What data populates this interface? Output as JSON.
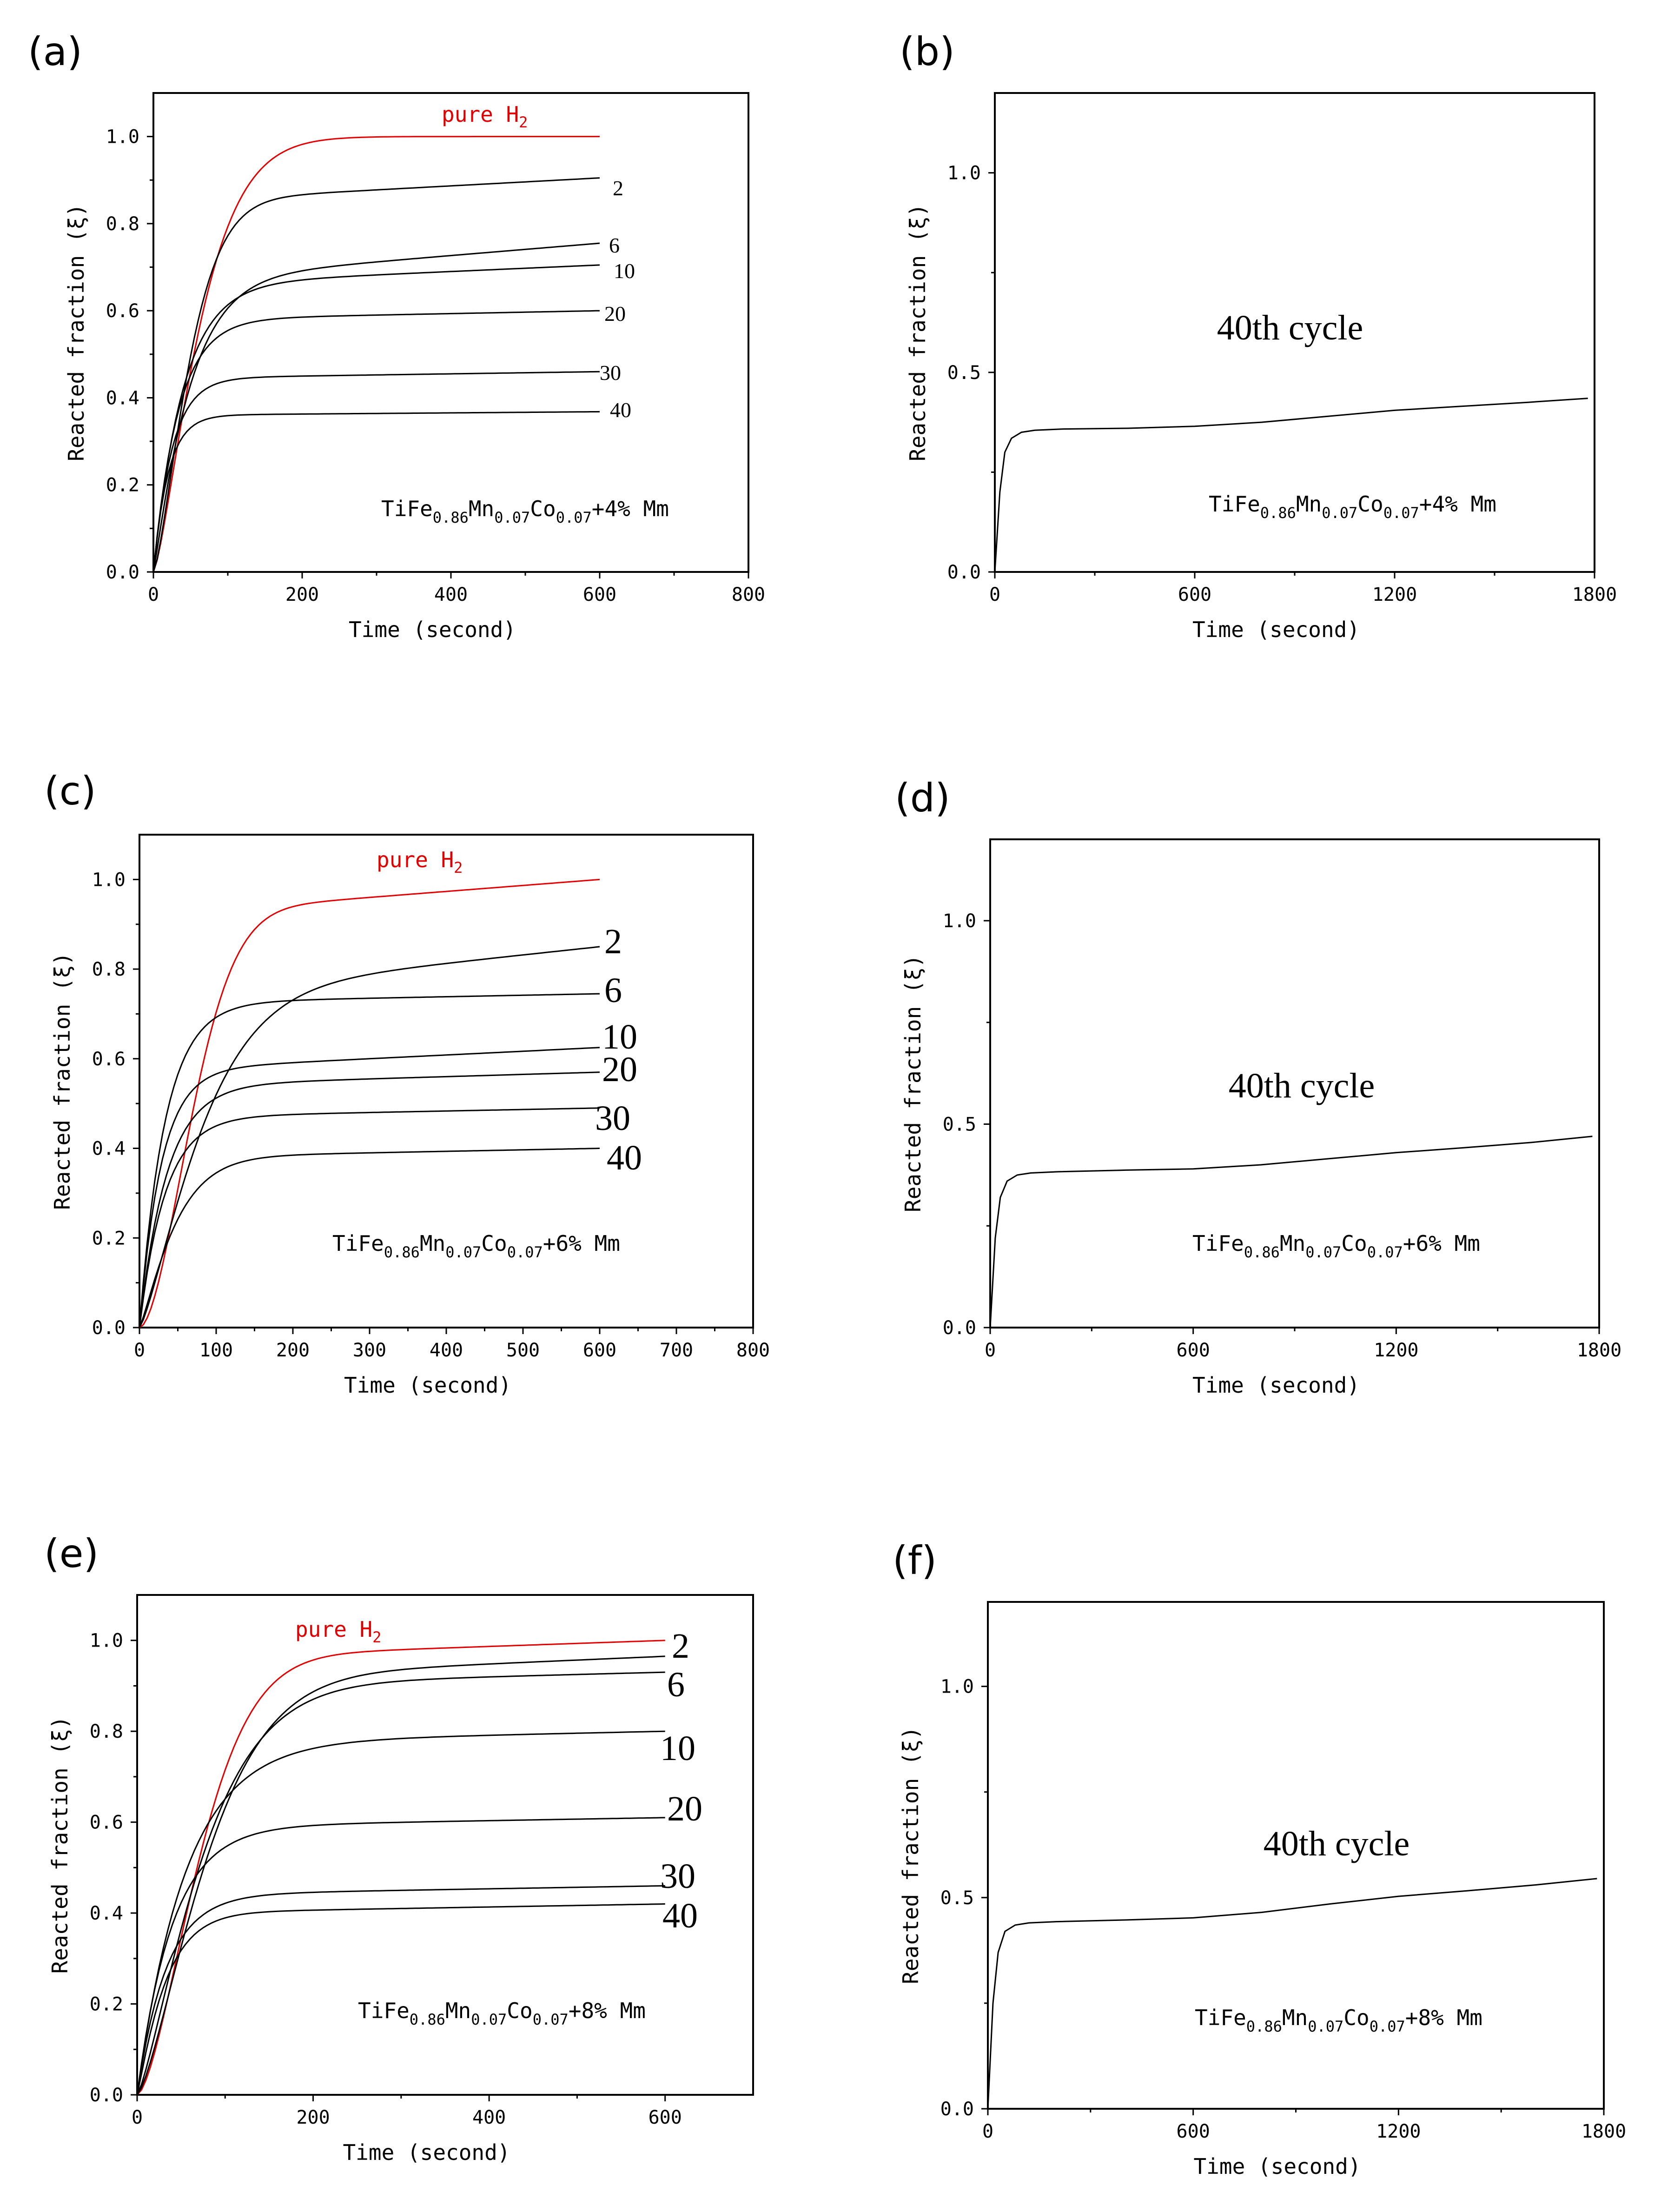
{
  "chart_data": [
    {
      "panel": "(a)",
      "type": "line",
      "xlabel": "Time (second)",
      "ylabel": "Reacted fraction (ξ)",
      "xlim": [
        0,
        800
      ],
      "ylim": [
        0,
        1.1
      ],
      "xticks": [
        0,
        200,
        400,
        600,
        800
      ],
      "yticks": [
        0.0,
        0.2,
        0.4,
        0.6,
        0.8,
        1.0
      ],
      "annotation": {
        "base": "TiFe",
        "sub1": "0.86",
        "mid": "Mn",
        "sub2": "0.07",
        "mid2": "Co",
        "sub3": "0.07",
        "tail": "+4% Mm"
      },
      "series": [
        {
          "name": "pure H2",
          "label": "pure H",
          "label_sub": "2",
          "color": "#e00000",
          "final": 1.0,
          "k": 0.014,
          "n": 1.35,
          "tail": 0.0
        },
        {
          "name": "2",
          "label": "2",
          "color": "#000000",
          "final": 0.85,
          "k": 0.018,
          "n": 1.4,
          "tail": 0.055
        },
        {
          "name": "6",
          "label": "6",
          "color": "#000000",
          "final": 0.67,
          "k": 0.02,
          "n": 1.1,
          "tail": 0.085
        },
        {
          "name": "10",
          "label": "10",
          "color": "#000000",
          "final": 0.66,
          "k": 0.025,
          "n": 1.0,
          "tail": 0.045
        },
        {
          "name": "20",
          "label": "20",
          "color": "#000000",
          "final": 0.58,
          "k": 0.03,
          "n": 1.0,
          "tail": 0.02
        },
        {
          "name": "30",
          "label": "30",
          "color": "#000000",
          "final": 0.445,
          "k": 0.04,
          "n": 1.0,
          "tail": 0.015
        },
        {
          "name": "40",
          "label": "40",
          "color": "#000000",
          "final": 0.36,
          "k": 0.05,
          "n": 1.0,
          "tail": 0.008
        }
      ]
    },
    {
      "panel": "(b)",
      "type": "line",
      "xlabel": "Time (second)",
      "ylabel": "Reacted fraction (ξ)",
      "xlim": [
        0,
        1800
      ],
      "ylim": [
        0,
        1.2
      ],
      "xticks": [
        0,
        600,
        1200,
        1800
      ],
      "yticks": [
        0.0,
        0.5,
        1.0
      ],
      "title": "40th cycle",
      "annotation": {
        "base": "TiFe",
        "sub1": "0.86",
        "mid": "Mn",
        "sub2": "0.07",
        "mid2": "Co",
        "sub3": "0.07",
        "tail": "+4% Mm"
      },
      "series": [
        {
          "name": "40th cycle",
          "color": "#000000",
          "points": [
            [
              0,
              0
            ],
            [
              15,
              0.2
            ],
            [
              30,
              0.3
            ],
            [
              50,
              0.335
            ],
            [
              80,
              0.35
            ],
            [
              120,
              0.355
            ],
            [
              200,
              0.358
            ],
            [
              400,
              0.36
            ],
            [
              600,
              0.365
            ],
            [
              800,
              0.375
            ],
            [
              1000,
              0.39
            ],
            [
              1200,
              0.405
            ],
            [
              1400,
              0.415
            ],
            [
              1600,
              0.425
            ],
            [
              1780,
              0.435
            ]
          ]
        }
      ]
    },
    {
      "panel": "(c)",
      "type": "line",
      "xlabel": "Time (second)",
      "ylabel": "Reacted fraction (ξ)",
      "xlim": [
        0,
        800
      ],
      "ylim": [
        0,
        1.1
      ],
      "xticks": [
        0,
        100,
        200,
        300,
        400,
        500,
        600,
        700,
        800
      ],
      "yticks": [
        0.0,
        0.2,
        0.4,
        0.6,
        0.8,
        1.0
      ],
      "annotation": {
        "base": "TiFe",
        "sub1": "0.86",
        "mid": "Mn",
        "sub2": "0.07",
        "mid2": "Co",
        "sub3": "0.07",
        "tail": "+6% Mm"
      },
      "series": [
        {
          "name": "pure H2",
          "label": "pure H",
          "label_sub": "2",
          "color": "#e00000",
          "final": 0.92,
          "k": 0.012,
          "n": 1.8,
          "tail": 0.08
        },
        {
          "name": "2",
          "label": "2",
          "color": "#000000",
          "final": 0.74,
          "k": 0.011,
          "n": 1.3,
          "tail": 0.11
        },
        {
          "name": "6",
          "label": "6",
          "color": "#000000",
          "final": 0.725,
          "k": 0.03,
          "n": 1.0,
          "tail": 0.02
        },
        {
          "name": "10",
          "label": "10",
          "color": "#000000",
          "final": 0.575,
          "k": 0.035,
          "n": 1.0,
          "tail": 0.05
        },
        {
          "name": "20",
          "label": "20",
          "color": "#000000",
          "final": 0.54,
          "k": 0.028,
          "n": 1.0,
          "tail": 0.03
        },
        {
          "name": "30",
          "label": "30",
          "color": "#000000",
          "final": 0.47,
          "k": 0.03,
          "n": 1.0,
          "tail": 0.02
        },
        {
          "name": "40",
          "label": "40",
          "color": "#000000",
          "final": 0.38,
          "k": 0.02,
          "n": 1.2,
          "tail": 0.02
        }
      ]
    },
    {
      "panel": "(d)",
      "type": "line",
      "xlabel": "Time (second)",
      "ylabel": "Reacted fraction (ξ)",
      "xlim": [
        0,
        1800
      ],
      "ylim": [
        0,
        1.2
      ],
      "xticks": [
        0,
        600,
        1200,
        1800
      ],
      "yticks": [
        0.0,
        0.5,
        1.0
      ],
      "title": "40th cycle",
      "annotation": {
        "base": "TiFe",
        "sub1": "0.86",
        "mid": "Mn",
        "sub2": "0.07",
        "mid2": "Co",
        "sub3": "0.07",
        "tail": "+6% Mm"
      },
      "series": [
        {
          "name": "40th cycle",
          "color": "#000000",
          "points": [
            [
              0,
              0
            ],
            [
              15,
              0.22
            ],
            [
              30,
              0.32
            ],
            [
              50,
              0.36
            ],
            [
              80,
              0.375
            ],
            [
              120,
              0.38
            ],
            [
              200,
              0.383
            ],
            [
              400,
              0.387
            ],
            [
              600,
              0.39
            ],
            [
              800,
              0.4
            ],
            [
              1000,
              0.415
            ],
            [
              1200,
              0.43
            ],
            [
              1400,
              0.442
            ],
            [
              1600,
              0.455
            ],
            [
              1780,
              0.47
            ]
          ]
        }
      ]
    },
    {
      "panel": "(e)",
      "type": "line",
      "xlabel": "Time (second)",
      "ylabel": "Reacted fraction (ξ)",
      "xlim": [
        0,
        700
      ],
      "ylim": [
        0,
        1.1
      ],
      "xticks": [
        0,
        200,
        400,
        600
      ],
      "yticks": [
        0.0,
        0.2,
        0.4,
        0.6,
        0.8,
        1.0
      ],
      "annotation": {
        "base": "TiFe",
        "sub1": "0.86",
        "mid": "Mn",
        "sub2": "0.07",
        "mid2": "Co",
        "sub3": "0.07",
        "tail": "+8% Mm"
      },
      "series": [
        {
          "name": "pure H2",
          "label": "pure H",
          "label_sub": "2",
          "color": "#e00000",
          "final": 0.96,
          "k": 0.012,
          "n": 1.6,
          "tail": 0.04
        },
        {
          "name": "2",
          "label": "2",
          "color": "#000000",
          "final": 0.915,
          "k": 0.011,
          "n": 1.4,
          "tail": 0.05
        },
        {
          "name": "6",
          "label": "6",
          "color": "#000000",
          "final": 0.9,
          "k": 0.012,
          "n": 1.3,
          "tail": 0.03
        },
        {
          "name": "10",
          "label": "10",
          "color": "#000000",
          "final": 0.775,
          "k": 0.018,
          "n": 1.0,
          "tail": 0.025
        },
        {
          "name": "20",
          "label": "20",
          "color": "#000000",
          "final": 0.59,
          "k": 0.025,
          "n": 1.0,
          "tail": 0.02
        },
        {
          "name": "30",
          "label": "30",
          "color": "#000000",
          "final": 0.44,
          "k": 0.03,
          "n": 1.0,
          "tail": 0.02
        },
        {
          "name": "40",
          "label": "40",
          "color": "#000000",
          "final": 0.4,
          "k": 0.03,
          "n": 1.1,
          "tail": 0.02
        }
      ]
    },
    {
      "panel": "(f)",
      "type": "line",
      "xlabel": "Time (second)",
      "ylabel": "Reacted fraction (ξ)",
      "xlim": [
        0,
        1800
      ],
      "ylim": [
        0,
        1.2
      ],
      "xticks": [
        0,
        600,
        1200,
        1800
      ],
      "yticks": [
        0.0,
        0.5,
        1.0
      ],
      "title": "40th cycle",
      "annotation": {
        "base": "TiFe",
        "sub1": "0.86",
        "mid": "Mn",
        "sub2": "0.07",
        "mid2": "Co",
        "sub3": "0.07",
        "tail": "+8% Mm"
      },
      "series": [
        {
          "name": "40th cycle",
          "color": "#000000",
          "points": [
            [
              0,
              0
            ],
            [
              15,
              0.25
            ],
            [
              30,
              0.37
            ],
            [
              50,
              0.42
            ],
            [
              80,
              0.435
            ],
            [
              120,
              0.44
            ],
            [
              200,
              0.443
            ],
            [
              400,
              0.447
            ],
            [
              600,
              0.452
            ],
            [
              800,
              0.465
            ],
            [
              1000,
              0.485
            ],
            [
              1200,
              0.503
            ],
            [
              1400,
              0.516
            ],
            [
              1600,
              0.53
            ],
            [
              1780,
              0.545
            ]
          ]
        }
      ]
    }
  ]
}
